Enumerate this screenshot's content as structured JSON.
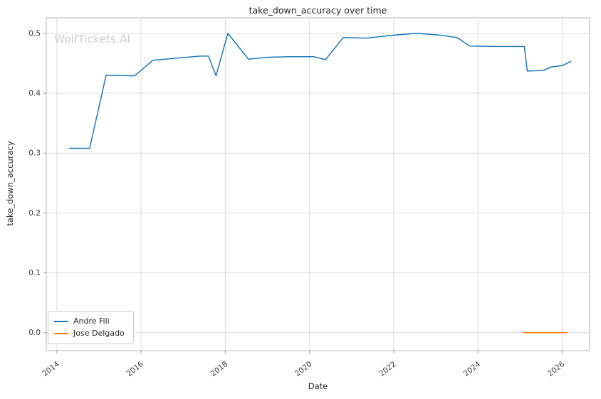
{
  "watermark": "WolfTickets.AI",
  "chart_data": {
    "type": "line",
    "title": "take_down_accuracy over time",
    "xlabel": "Date",
    "ylabel": "take_down_accuracy",
    "xlim": [
      2013.75,
      2026.65
    ],
    "ylim": [
      -0.03,
      0.526
    ],
    "xticks": [
      2014,
      2016,
      2018,
      2020,
      2022,
      2024,
      2026
    ],
    "yticks": [
      0.0,
      0.1,
      0.2,
      0.3,
      0.4,
      0.5
    ],
    "grid": true,
    "legend_position": "lower left",
    "series": [
      {
        "name": "Andre Fili",
        "color": "#1f77b4",
        "points": [
          [
            2014.3,
            0.308
          ],
          [
            2014.78,
            0.308
          ],
          [
            2015.17,
            0.43
          ],
          [
            2015.85,
            0.429
          ],
          [
            2016.28,
            0.455
          ],
          [
            2016.75,
            0.458
          ],
          [
            2017.4,
            0.462
          ],
          [
            2017.6,
            0.462
          ],
          [
            2017.78,
            0.429
          ],
          [
            2018.06,
            0.5
          ],
          [
            2018.55,
            0.457
          ],
          [
            2019.0,
            0.46
          ],
          [
            2019.5,
            0.461
          ],
          [
            2020.1,
            0.461
          ],
          [
            2020.38,
            0.456
          ],
          [
            2020.8,
            0.493
          ],
          [
            2021.35,
            0.492
          ],
          [
            2022.0,
            0.497
          ],
          [
            2022.55,
            0.5
          ],
          [
            2023.1,
            0.497
          ],
          [
            2023.5,
            0.493
          ],
          [
            2023.8,
            0.479
          ],
          [
            2024.4,
            0.478
          ],
          [
            2025.1,
            0.478
          ],
          [
            2025.17,
            0.437
          ],
          [
            2025.55,
            0.438
          ],
          [
            2025.75,
            0.444
          ],
          [
            2026.0,
            0.446
          ],
          [
            2026.2,
            0.453
          ]
        ]
      },
      {
        "name": "Jose Delgado",
        "color": "#ff7f0e",
        "points": [
          [
            2025.08,
            0.0
          ],
          [
            2026.1,
            0.0
          ]
        ]
      }
    ]
  }
}
